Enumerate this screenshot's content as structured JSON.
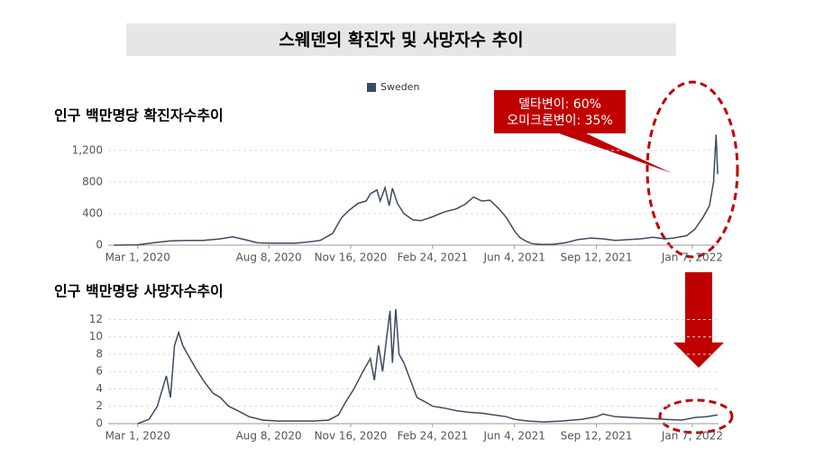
{
  "title": "스웨덴의 확진자 및 사망자수 추이",
  "chart_data": [
    {
      "type": "line",
      "title": "인구 백만명당 확진자수추이",
      "annotations": [
        "델타변이: 60%",
        "오미크론변이: 35%"
      ],
      "legend": "top",
      "x": [
        "2020-02-01",
        "2020-03-01",
        "2020-03-20",
        "2020-04-10",
        "2020-05-01",
        "2020-05-20",
        "2020-06-10",
        "2020-06-25",
        "2020-07-10",
        "2020-07-25",
        "2020-08-10",
        "2020-08-25",
        "2020-09-10",
        "2020-09-25",
        "2020-10-10",
        "2020-10-25",
        "2020-11-05",
        "2020-11-15",
        "2020-11-25",
        "2020-12-05",
        "2020-12-10",
        "2020-12-18",
        "2020-12-22",
        "2020-12-28",
        "2021-01-02",
        "2021-01-06",
        "2021-01-12",
        "2021-01-20",
        "2021-01-31",
        "2021-02-10",
        "2021-02-24",
        "2021-03-10",
        "2021-03-25",
        "2021-04-05",
        "2021-04-15",
        "2021-04-25",
        "2021-05-05",
        "2021-05-15",
        "2021-05-25",
        "2021-06-04",
        "2021-06-10",
        "2021-06-18",
        "2021-06-25",
        "2021-07-05",
        "2021-07-20",
        "2021-08-05",
        "2021-08-20",
        "2021-09-05",
        "2021-09-20",
        "2021-10-05",
        "2021-10-20",
        "2021-11-05",
        "2021-11-20",
        "2021-12-05",
        "2021-12-15",
        "2021-12-31",
        "2022-01-10",
        "2022-01-20",
        "2022-01-28",
        "2022-02-02",
        "2022-02-05",
        "2022-02-07"
      ],
      "series": [
        {
          "name": "Sweden",
          "color": "#3d4a63",
          "values": [
            0,
            5,
            30,
            55,
            60,
            60,
            80,
            105,
            70,
            30,
            25,
            25,
            25,
            40,
            60,
            150,
            350,
            450,
            530,
            560,
            650,
            700,
            560,
            730,
            500,
            720,
            530,
            400,
            320,
            310,
            360,
            420,
            460,
            520,
            610,
            560,
            570,
            470,
            350,
            180,
            100,
            50,
            20,
            10,
            10,
            30,
            70,
            90,
            80,
            60,
            70,
            80,
            100,
            80,
            90,
            120,
            200,
            350,
            500,
            800,
            1400,
            900
          ]
        }
      ],
      "xlim": [
        "2020-01-25",
        "2022-02-08"
      ],
      "xticks": [
        {
          "value": "2020-03-01",
          "label": "Mar 1, 2020"
        },
        {
          "value": "2020-08-08",
          "label": "Aug 8, 2020"
        },
        {
          "value": "2020-11-16",
          "label": "Nov 16, 2020"
        },
        {
          "value": "2021-02-24",
          "label": "Feb 24, 2021"
        },
        {
          "value": "2021-06-04",
          "label": "Jun 4, 2021"
        },
        {
          "value": "2021-09-12",
          "label": "Sep 12, 2021"
        },
        {
          "value": "2022-01-07",
          "label": "Jan 7, 2022"
        }
      ],
      "ylim": [
        0,
        1450
      ],
      "yticks": [
        0,
        400,
        800,
        {
          "value": 1200,
          "label": "1,200"
        }
      ],
      "grid": true
    },
    {
      "type": "line",
      "title": "인구 백만명당 사망자수추이",
      "x": [
        "2020-03-01",
        "2020-03-15",
        "2020-03-25",
        "2020-04-05",
        "2020-04-10",
        "2020-04-15",
        "2020-04-20",
        "2020-04-25",
        "2020-05-01",
        "2020-05-10",
        "2020-05-20",
        "2020-06-01",
        "2020-06-10",
        "2020-06-20",
        "2020-07-01",
        "2020-07-15",
        "2020-08-01",
        "2020-08-20",
        "2020-09-10",
        "2020-10-01",
        "2020-10-20",
        "2020-11-01",
        "2020-11-10",
        "2020-11-20",
        "2020-12-01",
        "2020-12-10",
        "2020-12-15",
        "2020-12-20",
        "2020-12-25",
        "2020-12-30",
        "2021-01-03",
        "2021-01-06",
        "2021-01-10",
        "2021-01-14",
        "2021-01-20",
        "2021-01-28",
        "2021-02-05",
        "2021-02-15",
        "2021-02-24",
        "2021-03-10",
        "2021-03-25",
        "2021-04-10",
        "2021-04-25",
        "2021-05-10",
        "2021-05-25",
        "2021-06-04",
        "2021-06-20",
        "2021-07-10",
        "2021-08-01",
        "2021-08-25",
        "2021-09-12",
        "2021-09-20",
        "2021-10-05",
        "2021-10-25",
        "2021-11-15",
        "2021-12-05",
        "2021-12-25",
        "2022-01-10",
        "2022-01-25",
        "2022-02-07"
      ],
      "series": [
        {
          "color": "#3d4a63",
          "values": [
            0,
            0.5,
            2,
            5.5,
            3,
            9,
            10.5,
            9,
            8,
            6.5,
            5,
            3.5,
            3,
            2,
            1.5,
            0.8,
            0.4,
            0.3,
            0.3,
            0.3,
            0.4,
            1,
            2.5,
            4,
            6,
            7.5,
            5,
            9,
            6,
            10,
            13,
            7,
            13.2,
            8,
            7,
            5,
            3,
            2.5,
            2,
            1.8,
            1.5,
            1.3,
            1.2,
            1,
            0.8,
            0.5,
            0.3,
            0.2,
            0.3,
            0.5,
            0.8,
            1.1,
            0.8,
            0.7,
            0.6,
            0.5,
            0.4,
            0.7,
            0.8,
            1
          ]
        }
      ],
      "xlim": [
        "2020-01-25",
        "2022-02-08"
      ],
      "xticks": [
        {
          "value": "2020-03-01",
          "label": "Mar 1, 2020"
        },
        {
          "value": "2020-08-08",
          "label": "Aug 8, 2020"
        },
        {
          "value": "2020-11-16",
          "label": "Nov 16, 2020"
        },
        {
          "value": "2021-02-24",
          "label": "Feb 24, 2021"
        },
        {
          "value": "2021-06-04",
          "label": "Jun 4, 2021"
        },
        {
          "value": "2021-09-12",
          "label": "Sep 12, 2021"
        },
        {
          "value": "2022-01-07",
          "label": "Jan 7, 2022"
        }
      ],
      "ylim": [
        0,
        13.5
      ],
      "yticks": [
        0,
        2,
        4,
        6,
        8,
        10,
        12
      ],
      "grid": true
    }
  ]
}
